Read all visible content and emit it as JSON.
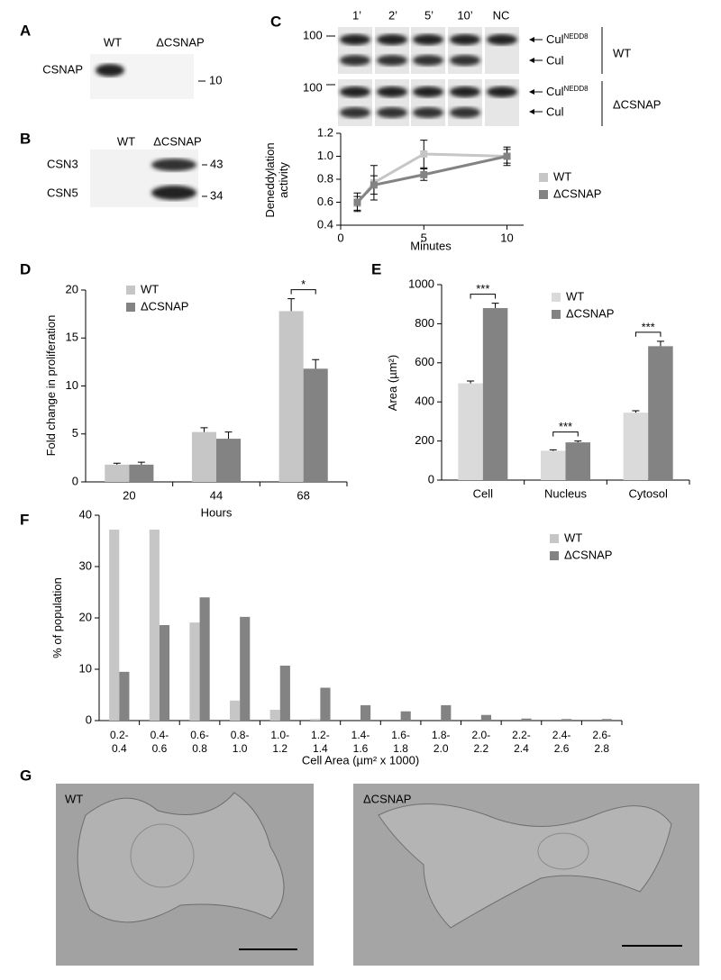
{
  "panel_labels": [
    "A",
    "B",
    "C",
    "D",
    "E",
    "F",
    "G"
  ],
  "blot_a": {
    "lanes": [
      "WT",
      "ΔCSNAP"
    ],
    "rows": [
      "CSNAP"
    ],
    "markers": [
      "10"
    ]
  },
  "blot_b": {
    "lanes": [
      "WT",
      "ΔCSNAP"
    ],
    "rows": [
      "CSN3",
      "CSN5"
    ],
    "markers": [
      "43",
      "34"
    ]
  },
  "blot_c": {
    "lanes": [
      "1’",
      "2’",
      "5’",
      "10’",
      "NC"
    ],
    "markers": [
      "100",
      "100"
    ],
    "band_top": {
      "base": "Cul",
      "sup": "NEDD8"
    },
    "band_bottom": "Cul",
    "groups": [
      "WT",
      "ΔCSNAP"
    ]
  },
  "micrographs": {
    "left": "WT",
    "right": "ΔCSNAP"
  },
  "chart_data": [
    {
      "type": "line",
      "x_label": "Minutes",
      "y_label": "Deneddylation activity",
      "x": [
        1,
        2,
        5,
        10
      ],
      "series": [
        {
          "name": "WT",
          "color": "#c6c6c6",
          "values": [
            0.59,
            0.77,
            1.02,
            1.0
          ],
          "errors": [
            0.06,
            0.15,
            0.12,
            0.06
          ]
        },
        {
          "name": "ΔCSNAP",
          "color": "#838383",
          "values": [
            0.6,
            0.75,
            0.84,
            1.0
          ],
          "errors": [
            0.08,
            0.08,
            0.05,
            0.08
          ]
        }
      ],
      "xlim": [
        0,
        11
      ],
      "xticks": [
        0,
        5,
        10
      ],
      "ylim": [
        0.4,
        1.2
      ],
      "yticks": [
        0.4,
        0.6,
        0.8,
        {
          "value": 1,
          "label": "1.0"
        },
        1.2
      ]
    },
    {
      "type": "bar",
      "x_label": "Hours",
      "y_label": "Fold change in proliferation",
      "categories": [
        "20",
        "44",
        "68"
      ],
      "series": [
        {
          "name": "WT",
          "color": "#c6c6c6",
          "values": [
            1.8,
            5.2,
            17.8
          ],
          "errors": [
            0.15,
            0.45,
            1.3
          ]
        },
        {
          "name": "ΔCSNAP",
          "color": "#838383",
          "values": [
            1.8,
            4.5,
            11.8
          ],
          "errors": [
            0.25,
            0.7,
            0.95
          ]
        }
      ],
      "ylim": [
        0,
        20
      ],
      "yticks": [
        0,
        5,
        10,
        15,
        20
      ],
      "annotations": [
        "*"
      ]
    },
    {
      "type": "bar",
      "y_label": "Area (µm²)",
      "categories": [
        "Cell",
        "Nucleus",
        "Cytosol"
      ],
      "series": [
        {
          "name": "WT",
          "color": "#dadada",
          "values": [
            495,
            150,
            345
          ],
          "errors": [
            12,
            5,
            10
          ]
        },
        {
          "name": "ΔCSNAP",
          "color": "#838383",
          "values": [
            880,
            193,
            685
          ],
          "errors": [
            25,
            7,
            25
          ]
        }
      ],
      "ylim": [
        0,
        1000
      ],
      "yticks": [
        0,
        200,
        400,
        600,
        800,
        1000
      ],
      "annotations": [
        "***",
        "***",
        "***"
      ]
    },
    {
      "type": "bar",
      "x_label": "Cell Area (µm² x 1000)",
      "y_label": "% of population",
      "categories": [
        "0.2-\n0.4",
        "0.4-\n0.6",
        "0.6-\n0.8",
        "0.8-\n1.0",
        "1.0-\n1.2",
        "1.2-\n1.4",
        "1.4-\n1.6",
        "1.6-\n1.8",
        "1.8-\n2.0",
        "2.0-\n2.2",
        "2.2-\n2.4",
        "2.4-\n2.6",
        "2.6-\n2.8"
      ],
      "series": [
        {
          "name": "WT",
          "color": "#c6c6c6",
          "values": [
            37.2,
            37.2,
            19.1,
            3.9,
            2.1,
            0.3,
            0,
            0,
            0,
            0,
            0,
            0,
            0
          ]
        },
        {
          "name": "ΔCSNAP",
          "color": "#838383",
          "values": [
            9.5,
            18.6,
            24,
            20.2,
            10.7,
            6.4,
            3,
            1.8,
            3,
            1.1,
            0.4,
            0.3,
            0.3
          ]
        }
      ],
      "ylim": [
        0,
        40
      ],
      "yticks": [
        0,
        10,
        20,
        30,
        40
      ]
    }
  ]
}
